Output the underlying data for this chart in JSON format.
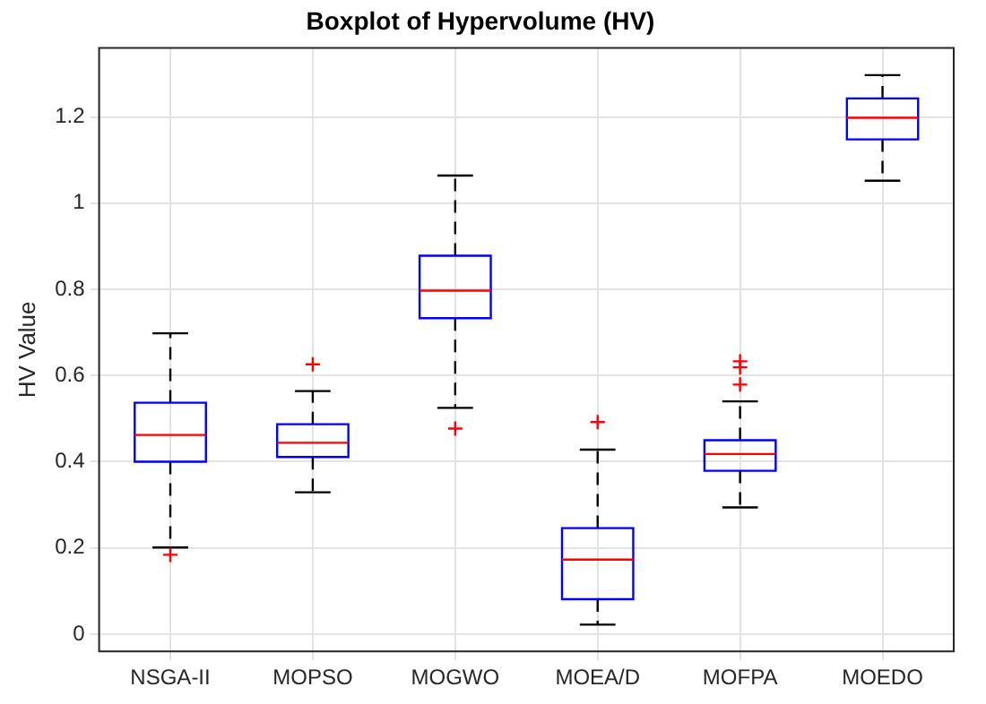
{
  "chart_data": {
    "type": "box",
    "title": "Boxplot of Hypervolume (HV)",
    "ylabel": "HV Value",
    "categories": [
      "NSGA-II",
      "MOPSO",
      "MOGWO",
      "MOEA/D",
      "MOFPA",
      "MOEDO"
    ],
    "series": [
      {
        "color": "#0000ff",
        "boxes": [
          {
            "low": 0.201,
            "q1": 0.4,
            "median": 0.462,
            "q3": 0.537,
            "high": 0.698,
            "outliers": [
              0.184
            ]
          },
          {
            "low": 0.329,
            "q1": 0.411,
            "median": 0.444,
            "q3": 0.487,
            "high": 0.564,
            "outliers": [
              0.626
            ]
          },
          {
            "low": 0.525,
            "q1": 0.733,
            "median": 0.797,
            "q3": 0.878,
            "high": 1.064,
            "outliers": [
              0.477
            ]
          },
          {
            "low": 0.022,
            "q1": 0.081,
            "median": 0.173,
            "q3": 0.246,
            "high": 0.428,
            "outliers": [
              0.492
            ]
          },
          {
            "low": 0.294,
            "q1": 0.379,
            "median": 0.418,
            "q3": 0.45,
            "high": 0.54,
            "outliers": [
              0.633,
              0.619,
              0.579
            ]
          },
          {
            "low": 1.052,
            "q1": 1.148,
            "median": 1.198,
            "q3": 1.243,
            "high": 1.297
          }
        ]
      }
    ],
    "ylim": [
      -0.04,
      1.36
    ],
    "yticks": [
      0,
      0.2,
      0.4,
      0.6,
      0.8,
      1,
      1.2
    ],
    "grid": true,
    "legend": false
  }
}
